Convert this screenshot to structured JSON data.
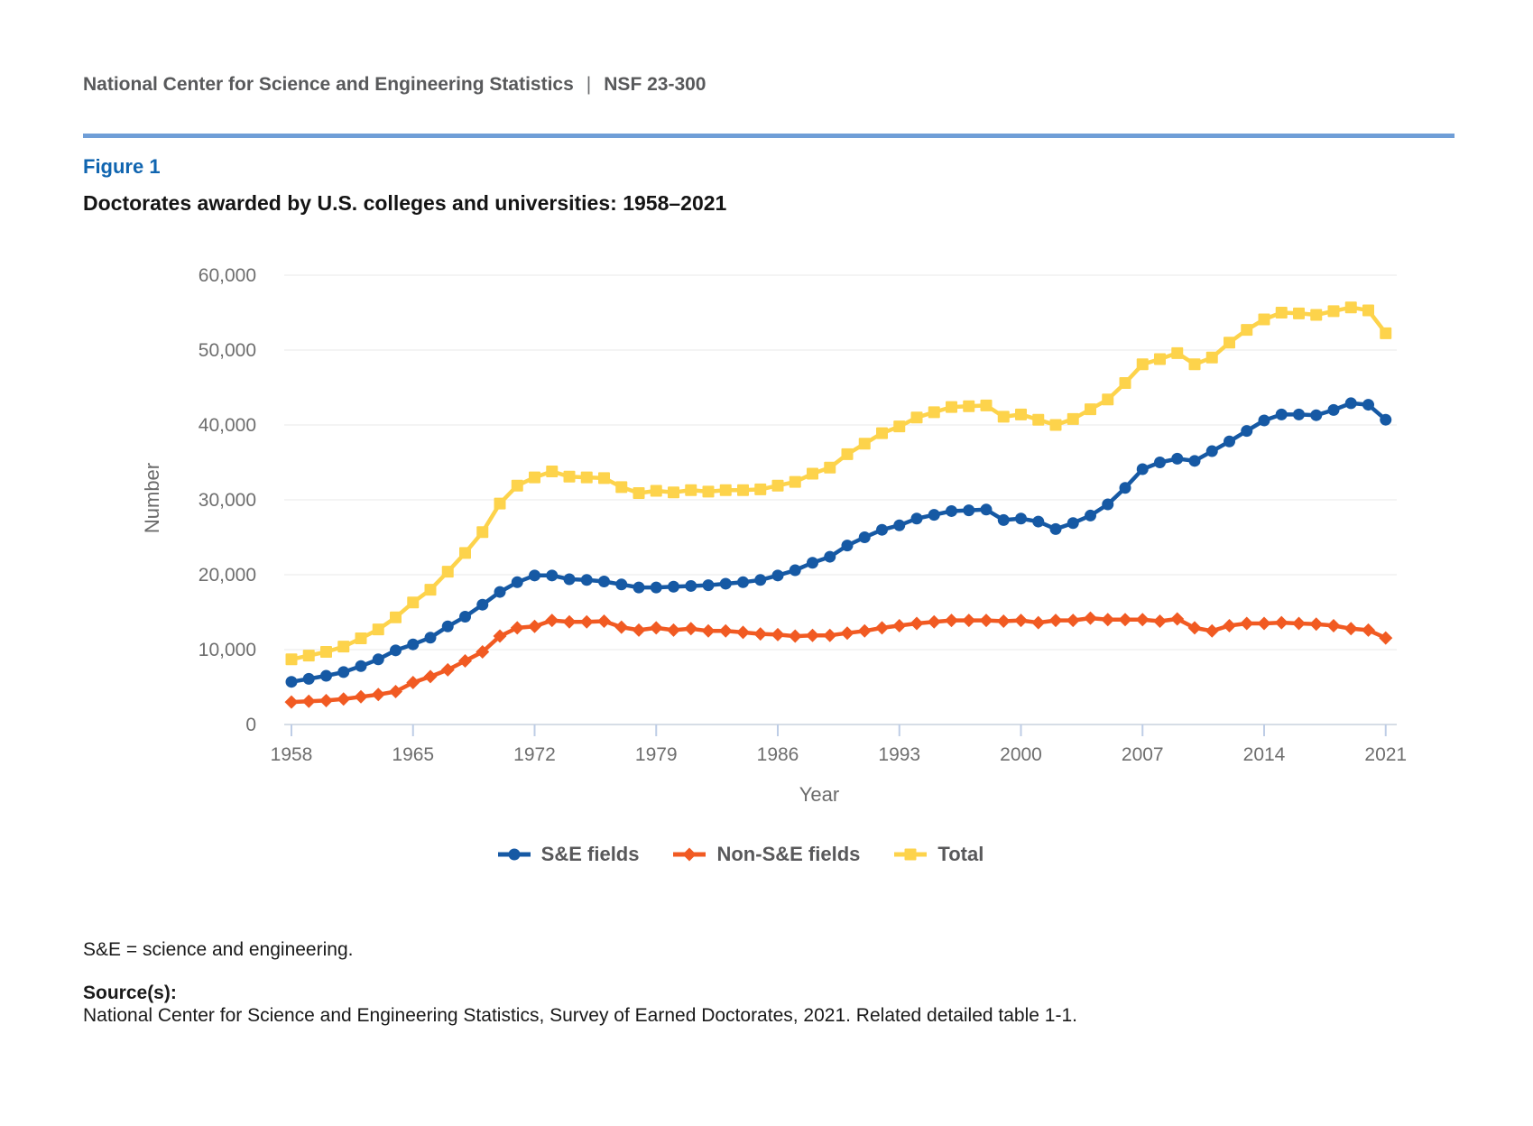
{
  "header": {
    "org": "National Center for Science and Engineering Statistics",
    "separator": "|",
    "report_number": "NSF 23-300"
  },
  "figure": {
    "label": "Figure 1",
    "title": "Doctorates awarded by U.S. colleges and universities: 1958–2021"
  },
  "footnotes": {
    "abbreviation_note": "S&E = science and engineering.",
    "sources_label": "Source(s):",
    "sources_text": "National Center for Science and Engineering Statistics, Survey of Earned Doctorates, 2021. Related detailed table 1-1."
  },
  "colors": {
    "header_text": "#58595B",
    "header_rule": "#6F9ED7",
    "figure_label_blue": "#1065B0",
    "se_blue": "#1659A4",
    "non_se_orange": "#F15A22",
    "total_yellow": "#FDD34B",
    "gridline": "#E8E8E8",
    "axis_line": "#C9D2DE",
    "tick": "#BECDE6",
    "axis_text": "#6B6B6B",
    "legend_text": "#58585A"
  },
  "chart_data": {
    "type": "line",
    "title": "Doctorates awarded by U.S. colleges and universities: 1958–2021",
    "xlabel": "Year",
    "ylabel": "Number",
    "ylim": [
      0,
      60000
    ],
    "ytick_interval": 10000,
    "yticks": [
      0,
      10000,
      20000,
      30000,
      40000,
      50000,
      60000
    ],
    "xticks": [
      1958,
      1965,
      1972,
      1979,
      1986,
      1993,
      2000,
      2007,
      2014,
      2021
    ],
    "grid": "horizontal",
    "legend_position": "bottom",
    "years": [
      1958,
      1959,
      1960,
      1961,
      1962,
      1963,
      1964,
      1965,
      1966,
      1967,
      1968,
      1969,
      1970,
      1971,
      1972,
      1973,
      1974,
      1975,
      1976,
      1977,
      1978,
      1979,
      1980,
      1981,
      1982,
      1983,
      1984,
      1985,
      1986,
      1987,
      1988,
      1989,
      1990,
      1991,
      1992,
      1993,
      1994,
      1995,
      1996,
      1997,
      1998,
      1999,
      2000,
      2001,
      2002,
      2003,
      2004,
      2005,
      2006,
      2007,
      2008,
      2009,
      2010,
      2011,
      2012,
      2013,
      2014,
      2015,
      2016,
      2017,
      2018,
      2019,
      2020,
      2021
    ],
    "series": [
      {
        "name": "S&E fields",
        "marker": "circle",
        "color": "#1659A4",
        "values": [
          5700,
          6100,
          6500,
          7000,
          7800,
          8700,
          9900,
          10700,
          11600,
          13100,
          14400,
          16000,
          17700,
          19000,
          19900,
          19900,
          19400,
          19300,
          19100,
          18700,
          18300,
          18300,
          18400,
          18500,
          18600,
          18800,
          19000,
          19300,
          19900,
          20600,
          21600,
          22400,
          23900,
          25000,
          26000,
          26600,
          27500,
          28000,
          28500,
          28600,
          28700,
          27300,
          27500,
          27100,
          26100,
          26900,
          27900,
          29400,
          31600,
          34100,
          35000,
          35500,
          35200,
          36500,
          37800,
          39200,
          40600,
          41400,
          41400,
          41300,
          42000,
          42900,
          42700,
          40700
        ]
      },
      {
        "name": "Non-S&E fields",
        "marker": "diamond",
        "color": "#F15A22",
        "values": [
          3000,
          3100,
          3200,
          3400,
          3700,
          4000,
          4400,
          5600,
          6400,
          7300,
          8500,
          9700,
          11800,
          12900,
          13100,
          13900,
          13700,
          13700,
          13800,
          13000,
          12600,
          12900,
          12600,
          12800,
          12500,
          12500,
          12300,
          12100,
          12000,
          11800,
          11900,
          11900,
          12200,
          12500,
          12900,
          13200,
          13500,
          13700,
          13900,
          13900,
          13900,
          13800,
          13900,
          13600,
          13900,
          13900,
          14200,
          14000,
          14000,
          14000,
          13800,
          14100,
          12900,
          12500,
          13200,
          13500,
          13500,
          13600,
          13500,
          13400,
          13200,
          12800,
          12600,
          11550
        ]
      },
      {
        "name": "Total",
        "marker": "square",
        "color": "#FDD34B",
        "values": [
          8700,
          9200,
          9700,
          10400,
          11500,
          12700,
          14300,
          16300,
          18000,
          20400,
          22900,
          25700,
          29500,
          31900,
          33000,
          33800,
          33100,
          33000,
          32900,
          31700,
          30900,
          31200,
          31000,
          31300,
          31100,
          31300,
          31300,
          31400,
          31900,
          32400,
          33500,
          34300,
          36100,
          37500,
          38900,
          39800,
          41000,
          41700,
          42400,
          42500,
          42600,
          41100,
          41400,
          40700,
          40000,
          40800,
          42100,
          43400,
          45600,
          48100,
          48800,
          49600,
          48100,
          49000,
          51000,
          52700,
          54100,
          55000,
          54900,
          54700,
          55200,
          55700,
          55300,
          52250
        ]
      }
    ]
  }
}
